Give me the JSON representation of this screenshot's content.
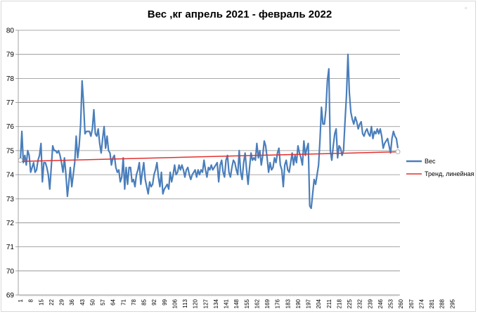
{
  "chart_data": {
    "type": "line",
    "title": "Вес ,кг апрель 2021 - февраль 2022",
    "xlabel": "",
    "ylabel": "",
    "ylim": [
      69,
      80
    ],
    "yticks": [
      69,
      70,
      71,
      72,
      73,
      74,
      75,
      76,
      77,
      78,
      79,
      80
    ],
    "x_tick_labels": [
      "1",
      "8",
      "15",
      "22",
      "29",
      "36",
      "43",
      "50",
      "57",
      "64",
      "71",
      "78",
      "85",
      "92",
      "99",
      "106",
      "113",
      "120",
      "127",
      "134",
      "141",
      "148",
      "155",
      "162",
      "169",
      "176",
      "183",
      "190",
      "197",
      "204",
      "211",
      "218",
      "225",
      "232",
      "239",
      "246",
      "253",
      "260",
      "267",
      "274",
      "281",
      "288",
      "295"
    ],
    "grid": "horizontal",
    "legend_position": "right",
    "series": [
      {
        "name": "Вес",
        "color": "#4a7ebb",
        "x_start": 1,
        "values": [
          74.6,
          75.8,
          74.5,
          74.8,
          74.4,
          75.0,
          74.8,
          74.1,
          74.3,
          74.5,
          74.1,
          74.2,
          74.6,
          74.8,
          75.3,
          73.7,
          74.5,
          74.5,
          74.3,
          74.0,
          73.4,
          74.3,
          75.2,
          75.0,
          75.0,
          74.9,
          75.0,
          74.8,
          74.5,
          74.1,
          74.7,
          74.0,
          73.1,
          73.7,
          74.3,
          73.5,
          74.0,
          74.5,
          75.6,
          74.7,
          75.2,
          76.1,
          77.9,
          77.0,
          75.7,
          75.8,
          75.8,
          75.8,
          75.6,
          75.9,
          76.7,
          75.7,
          75.6,
          75.9,
          75.3,
          74.9,
          75.5,
          76.0,
          75.1,
          75.6,
          75.0,
          74.9,
          74.4,
          74.7,
          74.8,
          74.3,
          74.1,
          74.2,
          73.7,
          73.9,
          74.7,
          73.4,
          74.3,
          73.6,
          74.3,
          74.3,
          73.7,
          73.8,
          73.5,
          74.0,
          74.2,
          74.5,
          73.6,
          74.1,
          74.5,
          73.8,
          73.5,
          73.2,
          73.7,
          73.5,
          73.6,
          74.0,
          74.2,
          74.5,
          73.9,
          73.5,
          74.1,
          73.2,
          73.4,
          73.5,
          73.6,
          73.4,
          74.1,
          73.7,
          74.0,
          74.4,
          74.0,
          74.1,
          74.4,
          74.2,
          74.4,
          74.2,
          73.9,
          74.2,
          74.3,
          74.0,
          73.8,
          74.0,
          74.1,
          74.2,
          73.9,
          74.2,
          74.0,
          74.2,
          74.1,
          74.6,
          74.2,
          73.9,
          74.3,
          74.2,
          74.4,
          74.2,
          74.3,
          74.4,
          74.5,
          73.7,
          74.4,
          74.6,
          74.1,
          73.9,
          74.6,
          74.8,
          74.1,
          73.9,
          74.3,
          74.6,
          74.5,
          74.2,
          74.0,
          75.0,
          74.1,
          73.8,
          74.5,
          74.9,
          74.2,
          73.6,
          74.3,
          74.9,
          74.6,
          74.7,
          74.6,
          75.3,
          74.7,
          75.0,
          74.4,
          74.8,
          75.4,
          75.2,
          74.7,
          74.1,
          74.5,
          74.2,
          74.3,
          74.7,
          74.5,
          74.9,
          75.1,
          74.4,
          74.2,
          73.5,
          74.4,
          74.6,
          74.2,
          74.1,
          74.5,
          74.9,
          74.4,
          74.8,
          74.5,
          75.2,
          74.9,
          74.7,
          74.4,
          75.4,
          74.8,
          75.1,
          75.3,
          72.7,
          72.6,
          73.2,
          73.8,
          73.6,
          74.0,
          74.4,
          75.5,
          76.8,
          76.1,
          76.1,
          76.7,
          77.9,
          78.4,
          75.0,
          74.6,
          75.2,
          75.7,
          75.9,
          74.7,
          75.2,
          75.1,
          74.8,
          75.0,
          76.2,
          77.3,
          79.0,
          77.4,
          76.6,
          76.3,
          76.1,
          76.4,
          76.2,
          75.9,
          76.1,
          76.2,
          75.7,
          75.6,
          75.8,
          75.9,
          75.7,
          75.6,
          76.0,
          75.5,
          75.8,
          75.7,
          75.9,
          75.7,
          75.9,
          75.6,
          75.1,
          75.3,
          75.4,
          75.5,
          75.2,
          74.9,
          75.5,
          75.8,
          75.6,
          75.5,
          75.1
        ],
        "note": "read off the plot; sampled every step"
      },
      {
        "name": "Тренд, линейная",
        "color": "#e3302f",
        "trend_start": 74.55,
        "trend_end": 74.95
      }
    ]
  }
}
